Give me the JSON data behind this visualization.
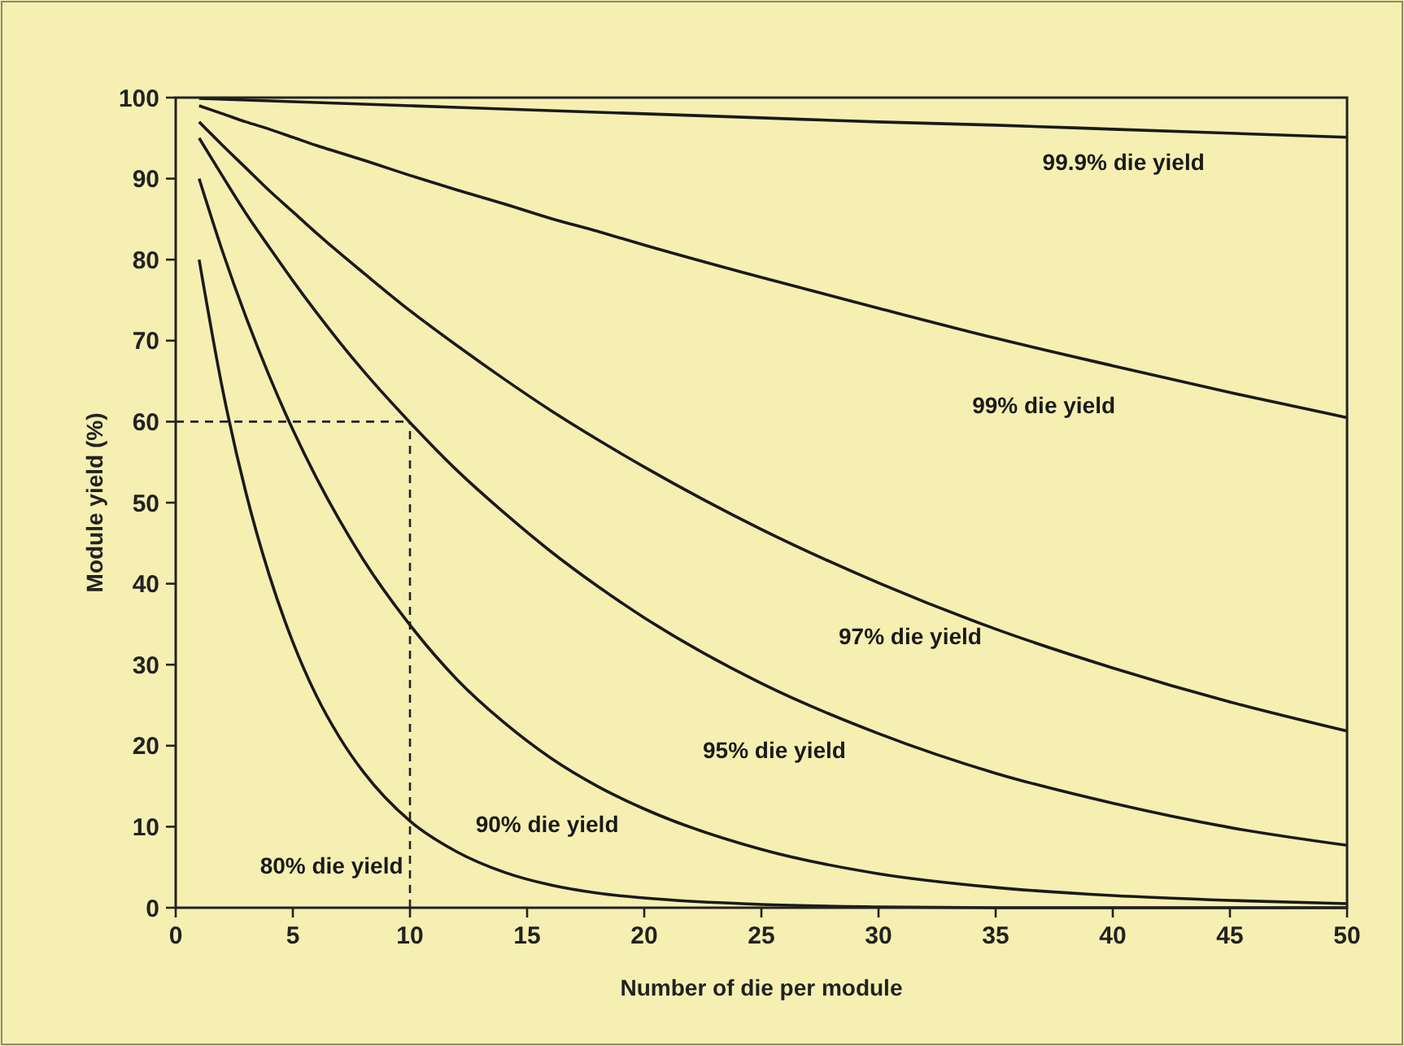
{
  "chart_data": {
    "type": "line",
    "xlabel": "Number of die per module",
    "ylabel": "Module yield (%)",
    "x": [
      1,
      2,
      3,
      4,
      5,
      6,
      7,
      8,
      10,
      12,
      14,
      16,
      18,
      20,
      25,
      30,
      35,
      40,
      45,
      50
    ],
    "series": [
      {
        "name": "99.9% die yield",
        "color": "#1a1a1a",
        "values": [
          99.9,
          99.8,
          99.7,
          99.6,
          99.5,
          99.4,
          99.3,
          99.2,
          99.0,
          98.8,
          98.6,
          98.4,
          98.2,
          98.0,
          97.5,
          97.0,
          96.6,
          96.1,
          95.6,
          95.1
        ]
      },
      {
        "name": "99% die yield",
        "color": "#1a1a1a",
        "values": [
          99.0,
          98.0,
          97.0,
          96.1,
          95.1,
          94.1,
          93.2,
          92.3,
          90.4,
          88.6,
          86.9,
          85.1,
          83.5,
          81.8,
          77.8,
          74.0,
          70.3,
          66.9,
          63.6,
          60.5
        ]
      },
      {
        "name": "97% die yield",
        "color": "#1a1a1a",
        "values": [
          97.0,
          94.1,
          91.3,
          88.5,
          85.9,
          83.3,
          80.8,
          78.4,
          73.7,
          69.4,
          65.3,
          61.4,
          57.8,
          54.4,
          46.7,
          40.1,
          34.4,
          29.6,
          25.4,
          21.8
        ]
      },
      {
        "name": "95% die yield",
        "color": "#1a1a1a",
        "values": [
          95.0,
          90.3,
          85.7,
          81.5,
          77.4,
          73.5,
          69.8,
          66.3,
          59.9,
          54.0,
          48.8,
          44.0,
          39.7,
          35.8,
          27.7,
          21.5,
          16.6,
          12.9,
          9.9,
          7.7
        ]
      },
      {
        "name": "90% die yield",
        "color": "#1a1a1a",
        "values": [
          90.0,
          81.0,
          72.9,
          65.6,
          59.0,
          53.1,
          47.8,
          43.0,
          34.9,
          28.2,
          22.9,
          18.5,
          15.0,
          12.2,
          7.2,
          4.2,
          2.5,
          1.5,
          0.9,
          0.5
        ]
      },
      {
        "name": "80% die yield",
        "color": "#1a1a1a",
        "values": [
          80.0,
          64.0,
          51.2,
          41.0,
          32.8,
          26.2,
          21.0,
          16.8,
          10.7,
          6.9,
          4.4,
          2.8,
          1.8,
          1.2,
          0.4,
          0.1,
          0.0,
          0.0,
          0.0,
          0.0
        ]
      }
    ],
    "ref_lines": [
      {
        "axis": "y",
        "value": 60,
        "line_style": "dashed"
      },
      {
        "axis": "x",
        "value": 10,
        "line_style": "dashed"
      }
    ],
    "xlim": [
      0,
      50
    ],
    "xticks": [
      0,
      5,
      10,
      15,
      20,
      25,
      30,
      35,
      40,
      45,
      50
    ],
    "ylim": [
      0,
      100
    ],
    "yticks": [
      0,
      10,
      20,
      30,
      40,
      50,
      60,
      70,
      80,
      90,
      100
    ],
    "grid": false,
    "marker": "none",
    "line_style": "solid"
  }
}
